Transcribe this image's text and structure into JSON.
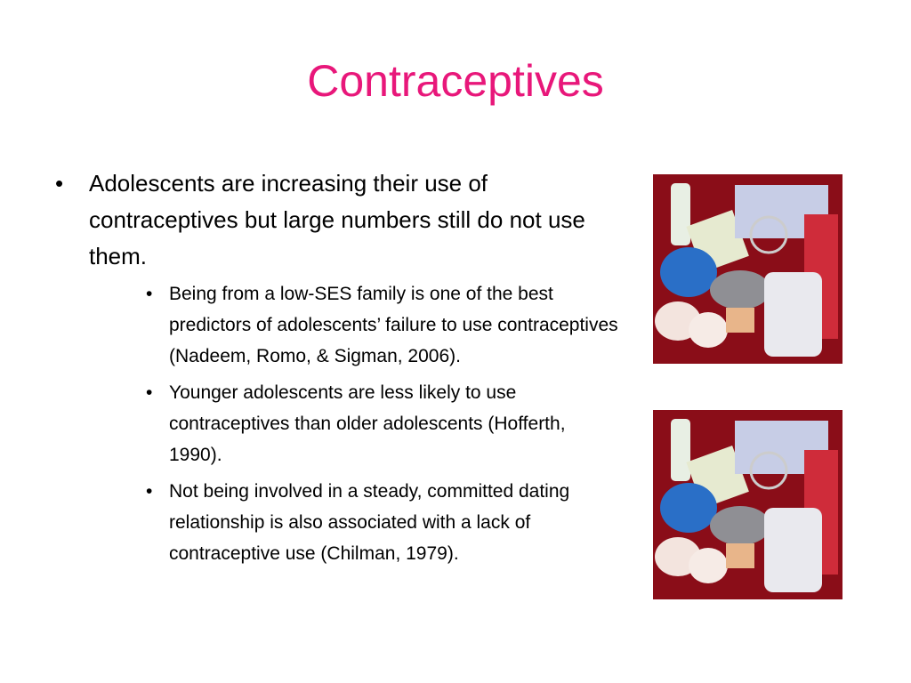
{
  "title": "Contraceptives",
  "bullets": [
    {
      "text": "Adolescents are increasing their use of contraceptives but large numbers still do not use them.",
      "sub_bullets": [
        "Being from a low-SES family is one of the best predictors of adolescents’ failure to use contraceptives (Nadeem, Romo, & Sigman, 2006).",
        "Younger adolescents are less likely to use contraceptives than older adolescents (Hofferth, 1990).",
        "Not being involved in a steady, committed dating relationship is also associated with a lack of contraceptive use (Chilman, 1979)."
      ]
    }
  ]
}
